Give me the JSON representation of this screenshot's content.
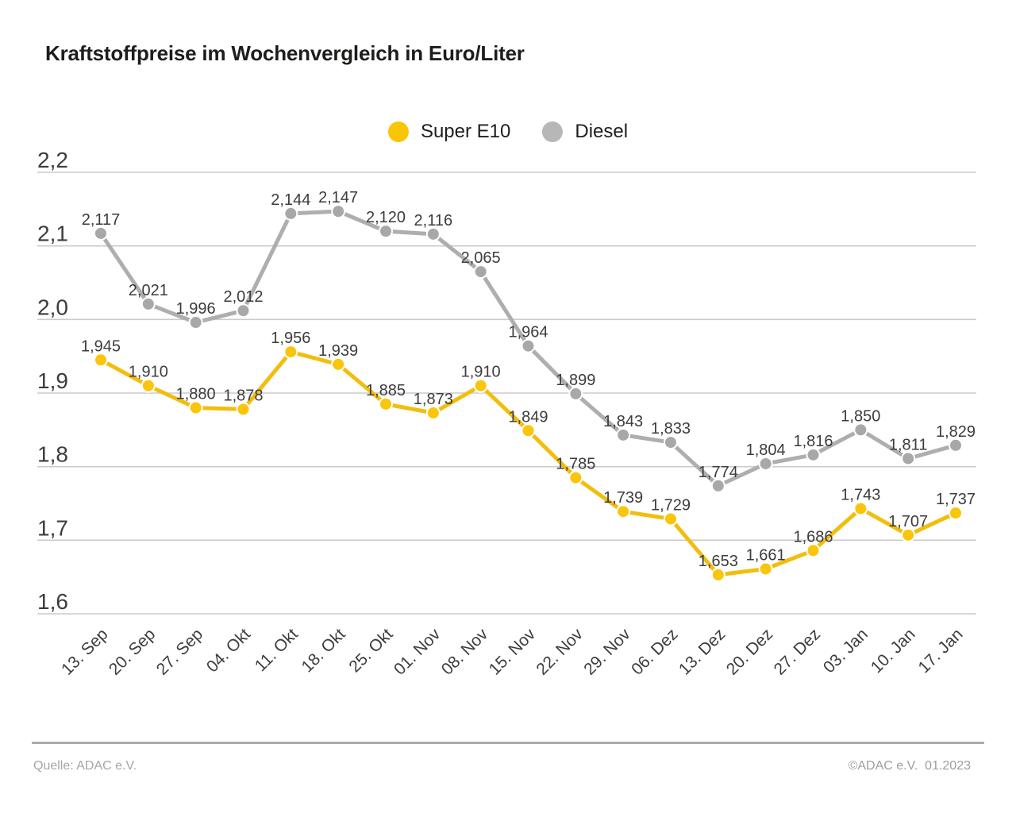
{
  "legend": {
    "items": [
      {
        "label": "Super E10",
        "color": "#f9c607"
      },
      {
        "label": "Diesel",
        "color": "#b7b7b7"
      }
    ]
  },
  "footer": {
    "source": "Quelle: ADAC e.V.",
    "copyright": "©ADAC e.V.  01.2023"
  },
  "chart_data": {
    "type": "line",
    "title": "Kraftstoffpreise im Wochenvergleich in Euro/Liter",
    "categories": [
      "13. Sep",
      "20. Sep",
      "27. Sep",
      "04. Okt",
      "11. Okt",
      "18. Okt",
      "25. Okt",
      "01. Nov",
      "08. Nov",
      "15. Nov",
      "22. Nov",
      "29. Nov",
      "06. Dez",
      "13. Dez",
      "20. Dez",
      "27. Dez",
      "03. Jan",
      "10. Jan",
      "17. Jan"
    ],
    "y_ticks": [
      "2,2",
      "2,1",
      "2,0",
      "1,9",
      "1,8",
      "1,7",
      "1,6"
    ],
    "ylim": [
      1.6,
      2.2
    ],
    "grid": true,
    "legend_position": "top-center",
    "decimal_separator": ",",
    "series": [
      {
        "name": "Super E10",
        "line_color": "#f2be0e",
        "marker_color": "#fac50a",
        "values": [
          1.945,
          1.91,
          1.88,
          1.878,
          1.956,
          1.939,
          1.885,
          1.873,
          1.91,
          1.849,
          1.785,
          1.739,
          1.729,
          1.653,
          1.661,
          1.686,
          1.743,
          1.707,
          1.737
        ],
        "labels": [
          "1,945",
          "1,910",
          "1,880",
          "1,878",
          "1,956",
          "1,939",
          "1,885",
          "1,873",
          "1,910",
          "1,849",
          "1,785",
          "1,739",
          "1,729",
          "1,653",
          "1,661",
          "1,686",
          "1,743",
          "1,707",
          "1,737"
        ]
      },
      {
        "name": "Diesel",
        "line_color": "#aeaeae",
        "marker_color": "#a8a8a8",
        "values": [
          2.117,
          2.021,
          1.996,
          2.012,
          2.144,
          2.147,
          2.12,
          2.116,
          2.065,
          1.964,
          1.899,
          1.843,
          1.833,
          1.774,
          1.804,
          1.816,
          1.85,
          1.811,
          1.829
        ],
        "labels": [
          "2,117",
          "2,021",
          "1,996",
          "2,012",
          "2,144",
          "2,147",
          "2,120",
          "2,116",
          "2,065",
          "1,964",
          "1,899",
          "1,843",
          "1,833",
          "1,774",
          "1,804",
          "1,816",
          "1,850",
          "1,811",
          "1,829"
        ]
      }
    ],
    "axis_label_color": "#3c3c3c",
    "gridline_color": "#cbcbcb"
  }
}
